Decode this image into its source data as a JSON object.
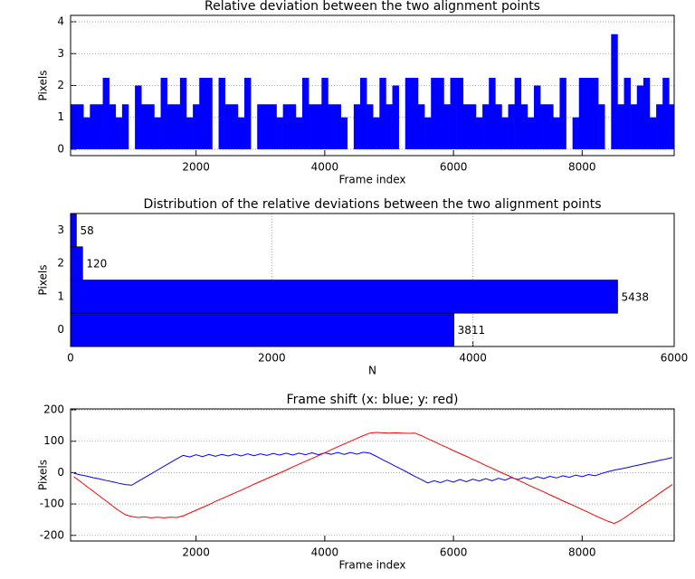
{
  "chart_data": [
    {
      "type": "bar",
      "title": "Relative deviation between the two alignment points",
      "xlabel": "Frame index",
      "ylabel": "Pixels",
      "x": [
        100,
        200,
        300,
        400,
        500,
        600,
        700,
        800,
        900,
        1000,
        1100,
        1200,
        1300,
        1400,
        1500,
        1600,
        1700,
        1800,
        1900,
        2000,
        2100,
        2200,
        2300,
        2400,
        2500,
        2600,
        2700,
        2800,
        2900,
        3000,
        3100,
        3200,
        3300,
        3400,
        3500,
        3600,
        3700,
        3800,
        3900,
        4000,
        4100,
        4200,
        4300,
        4400,
        4500,
        4600,
        4700,
        4800,
        4900,
        5000,
        5100,
        5200,
        5300,
        5400,
        5500,
        5600,
        5700,
        5800,
        5900,
        6000,
        6100,
        6200,
        6300,
        6400,
        6500,
        6600,
        6700,
        6800,
        6900,
        7000,
        7100,
        7200,
        7300,
        7400,
        7500,
        7600,
        7700,
        7800,
        7900,
        8000,
        8100,
        8200,
        8300,
        8400,
        8500,
        8600,
        8700,
        8800,
        8900,
        9000,
        9100,
        9200,
        9300,
        9400
      ],
      "values": [
        1.41,
        1.41,
        1,
        1.41,
        1.41,
        2.24,
        1.41,
        1,
        1.41,
        0,
        2,
        1.41,
        1.41,
        1,
        2.24,
        1.41,
        1.41,
        2.24,
        1,
        1.41,
        2.24,
        2.24,
        0,
        2.24,
        1.41,
        1.41,
        1,
        2.24,
        0,
        1.41,
        1.41,
        1.41,
        1,
        1.41,
        1.41,
        1,
        2.24,
        1.41,
        1.41,
        2.24,
        1.41,
        1.41,
        1,
        0,
        1.41,
        2.24,
        1.41,
        1,
        2.24,
        1.41,
        2,
        0,
        2.24,
        2.24,
        1.41,
        1,
        2.24,
        2.24,
        1.41,
        2.24,
        2.24,
        1.41,
        1.41,
        1,
        1.41,
        2.24,
        1.41,
        1,
        1.41,
        2.24,
        1.41,
        1,
        2,
        1.41,
        1.41,
        1,
        2.24,
        0,
        1,
        2.24,
        2.24,
        2.24,
        1.41,
        0,
        3.61,
        1.41,
        2.24,
        1.41,
        2,
        2.24,
        1,
        1.41,
        2.24,
        1.41
      ],
      "color": "#0000ff",
      "xlim": [
        50,
        9430
      ],
      "ylim": [
        -0.2,
        4.2
      ],
      "xticks": [
        2000,
        4000,
        6000,
        8000
      ],
      "yticks": [
        0,
        1,
        2,
        3,
        4
      ],
      "grid": "y"
    },
    {
      "type": "barh",
      "title": "Distribution of the relative deviations between the two alignment points",
      "xlabel": "N",
      "ylabel": "Pixels",
      "y": [
        0,
        1,
        2,
        3
      ],
      "values": [
        3811,
        5438,
        120,
        58
      ],
      "color": "#0000ff",
      "xlim": [
        0,
        6000
      ],
      "ylim": [
        -0.5,
        3.5
      ],
      "xticks": [
        0,
        2000,
        4000,
        6000
      ],
      "yticks": [
        0,
        1,
        2,
        3
      ],
      "grid": "x"
    },
    {
      "type": "line",
      "title": "Frame shift (x: blue; y: red)",
      "xlabel": "Frame index",
      "ylabel": "Pixels",
      "x": [
        100,
        200,
        300,
        400,
        500,
        600,
        700,
        800,
        900,
        1000,
        1100,
        1200,
        1300,
        1400,
        1500,
        1600,
        1700,
        1800,
        1900,
        2000,
        2100,
        2200,
        2300,
        2400,
        2500,
        2600,
        2700,
        2800,
        2900,
        3000,
        3100,
        3200,
        3300,
        3400,
        3500,
        3600,
        3700,
        3800,
        3900,
        4000,
        4100,
        4200,
        4300,
        4400,
        4500,
        4600,
        4700,
        4800,
        4900,
        5000,
        5100,
        5200,
        5300,
        5400,
        5500,
        5600,
        5700,
        5800,
        5900,
        6000,
        6100,
        6200,
        6300,
        6400,
        6500,
        6600,
        6700,
        6800,
        6900,
        7000,
        7100,
        7200,
        7300,
        7400,
        7500,
        7600,
        7700,
        7800,
        7900,
        8000,
        8100,
        8200,
        8300,
        8400,
        8500,
        8600,
        8700,
        8800,
        8900,
        9000,
        9100,
        9200,
        9300,
        9400
      ],
      "series": [
        {
          "color": "#0000ff",
          "values": [
            -2,
            -7,
            -11,
            -16,
            -20,
            -25,
            -29,
            -34,
            -38,
            -40,
            -28,
            -16,
            -4,
            8,
            20,
            32,
            44,
            55,
            50,
            57,
            51,
            58,
            52,
            58,
            53,
            59,
            53,
            60,
            54,
            60,
            55,
            61,
            56,
            62,
            56,
            62,
            57,
            63,
            57,
            63,
            58,
            64,
            58,
            64,
            59,
            65,
            62,
            52,
            41,
            31,
            20,
            10,
            -1,
            -12,
            -22,
            -33,
            -26,
            -32,
            -24,
            -30,
            -22,
            -29,
            -21,
            -27,
            -19,
            -26,
            -18,
            -24,
            -16,
            -22,
            -15,
            -21,
            -13,
            -19,
            -12,
            -17,
            -10,
            -15,
            -8,
            -13,
            -6,
            -10,
            -3,
            3,
            8,
            12,
            16,
            21,
            25,
            30,
            34,
            39,
            43,
            48
          ]
        },
        {
          "color": "#ff0000",
          "values": [
            -13,
            -28,
            -44,
            -59,
            -75,
            -90,
            -106,
            -121,
            -134,
            -140,
            -143,
            -141,
            -144,
            -142,
            -144,
            -142,
            -143,
            -138,
            -129,
            -120,
            -111,
            -102,
            -92,
            -83,
            -74,
            -65,
            -56,
            -47,
            -37,
            -28,
            -19,
            -10,
            -1,
            8,
            18,
            27,
            36,
            45,
            54,
            63,
            73,
            82,
            91,
            100,
            109,
            118,
            126,
            128,
            127,
            126,
            127,
            126,
            125,
            126,
            118,
            108,
            99,
            89,
            80,
            70,
            61,
            52,
            42,
            33,
            23,
            14,
            4,
            -5,
            -14,
            -24,
            -33,
            -43,
            -52,
            -61,
            -71,
            -80,
            -90,
            -99,
            -108,
            -118,
            -127,
            -137,
            -146,
            -155,
            -162,
            -152,
            -138,
            -124,
            -109,
            -95,
            -81,
            -66,
            -52,
            -38
          ]
        }
      ],
      "xlim": [
        50,
        9430
      ],
      "ylim": [
        -218,
        203
      ],
      "xticks": [
        2000,
        4000,
        6000,
        8000
      ],
      "yticks": [
        -200,
        -100,
        0,
        100,
        200
      ],
      "grid": "y"
    }
  ]
}
